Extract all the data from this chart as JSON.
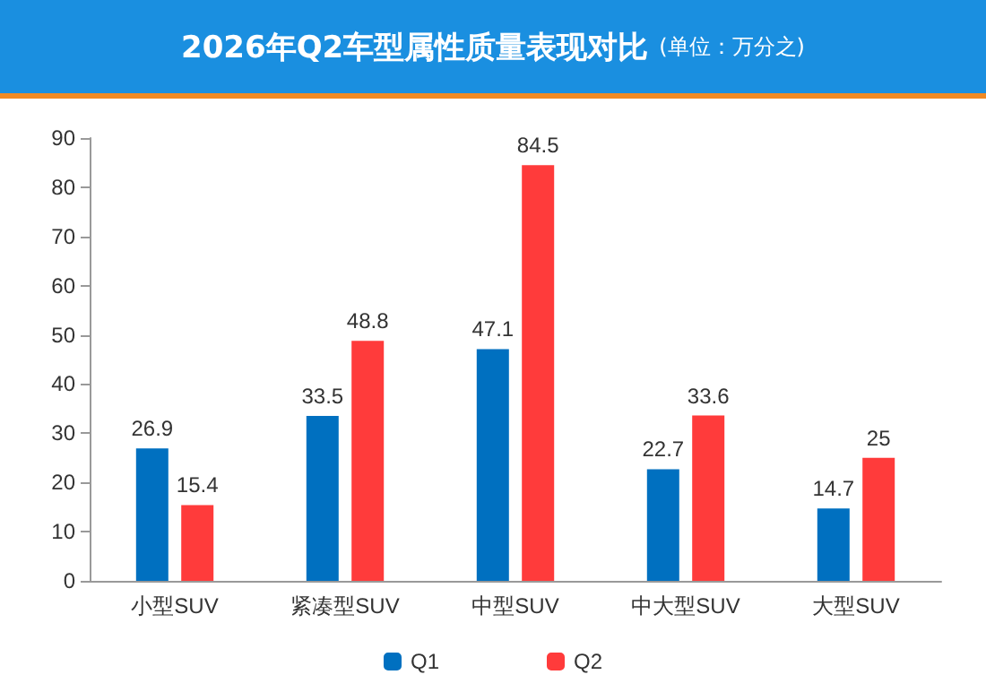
{
  "chart_data": {
    "type": "bar",
    "title": "2026年Q2车型属性质量表现对比",
    "subtitle": "(单位：万分之)",
    "categories": [
      "小型SUV",
      "紧凑型SUV",
      "中型SUV",
      "中大型SUV",
      "大型SUV"
    ],
    "series": [
      {
        "name": "Q1",
        "color": "#0070c0",
        "values": [
          26.9,
          33.5,
          47.1,
          22.7,
          14.7
        ]
      },
      {
        "name": "Q2",
        "color": "#ff3b3b",
        "values": [
          15.4,
          48.8,
          84.5,
          33.6,
          25
        ]
      }
    ],
    "ylim": [
      0,
      90
    ],
    "yticks": [
      0,
      10,
      20,
      30,
      40,
      50,
      60,
      70,
      80,
      90
    ],
    "grid": false,
    "legend": "bottom",
    "data_labels": true
  }
}
